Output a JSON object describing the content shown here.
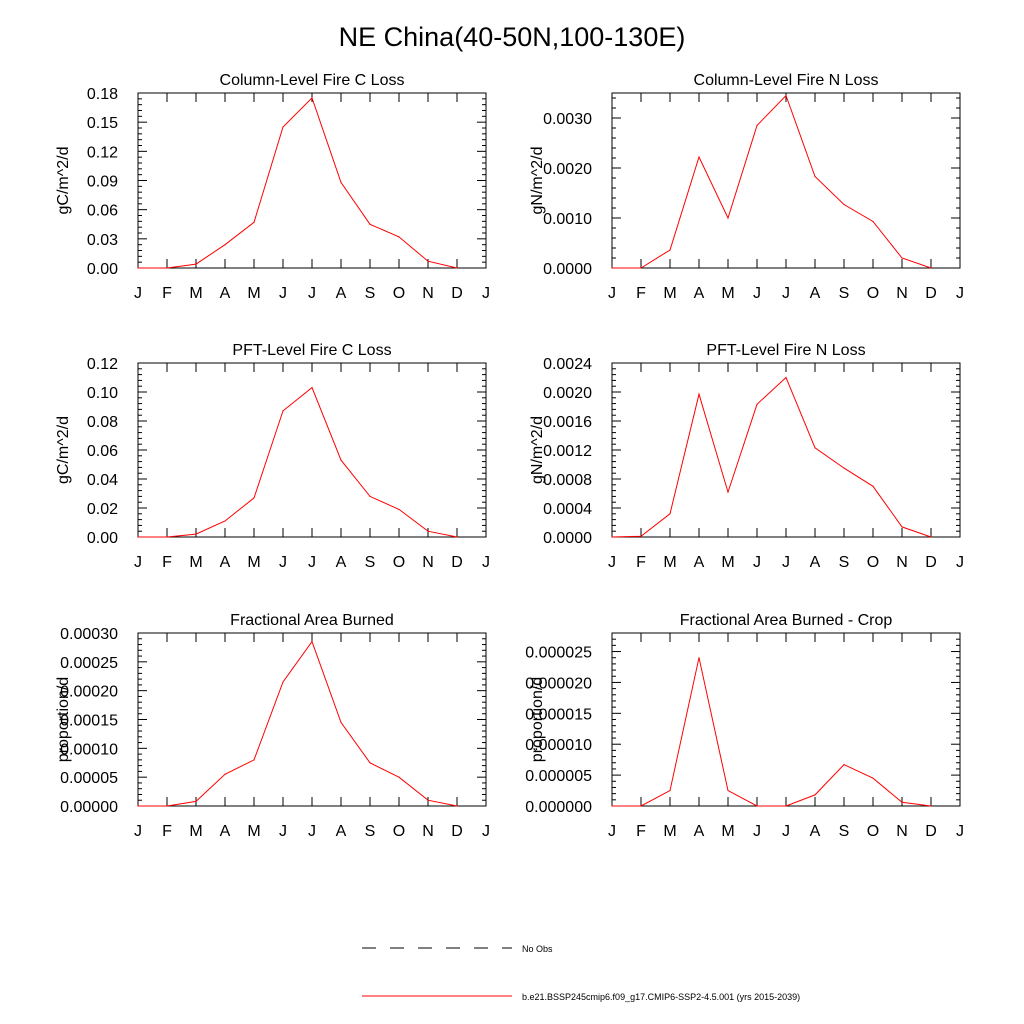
{
  "title": "NE China(40-50N,100-130E)",
  "months": [
    "J",
    "F",
    "M",
    "A",
    "M",
    "J",
    "J",
    "A",
    "S",
    "O",
    "N",
    "D",
    "J"
  ],
  "legend": {
    "obs_label": "No Obs",
    "model_label": "b.e21.BSSP245cmip6.f09_g17.CMIP6-SSP2-4.5.001 (yrs 2015-2039)",
    "obs_color": "#000000",
    "model_color": "#ff0000"
  },
  "chart_data": [
    {
      "type": "line",
      "title": "Column-Level Fire C Loss",
      "ylabel": "gC/m^2/d",
      "ylim": [
        0,
        0.18
      ],
      "yticks": [
        "0.00",
        "0.03",
        "0.06",
        "0.09",
        "0.12",
        "0.15",
        "0.18"
      ],
      "x": [
        "J",
        "F",
        "M",
        "A",
        "M",
        "J",
        "J",
        "A",
        "S",
        "O",
        "N",
        "D"
      ],
      "series": [
        {
          "values": [
            0.0,
            0.0,
            0.004,
            0.024,
            0.047,
            0.145,
            0.175,
            0.088,
            0.045,
            0.032,
            0.007,
            0.0
          ]
        }
      ]
    },
    {
      "type": "line",
      "title": "Column-Level Fire N Loss",
      "ylabel": "gN/m^2/d",
      "ylim": [
        0,
        0.0035
      ],
      "yticks": [
        "0.0000",
        "0.0010",
        "0.0020",
        "0.0030"
      ],
      "x": [
        "J",
        "F",
        "M",
        "A",
        "M",
        "J",
        "J",
        "A",
        "S",
        "O",
        "N",
        "D"
      ],
      "series": [
        {
          "values": [
            0.0,
            0.0,
            0.00036,
            0.00222,
            0.001,
            0.00285,
            0.00345,
            0.00183,
            0.00127,
            0.00093,
            0.0002,
            0.0
          ]
        }
      ]
    },
    {
      "type": "line",
      "title": "PFT-Level Fire C Loss",
      "ylabel": "gC/m^2/d",
      "ylim": [
        0,
        0.12
      ],
      "yticks": [
        "0.00",
        "0.02",
        "0.04",
        "0.06",
        "0.08",
        "0.10",
        "0.12"
      ],
      "x": [
        "J",
        "F",
        "M",
        "A",
        "M",
        "J",
        "J",
        "A",
        "S",
        "O",
        "N",
        "D"
      ],
      "series": [
        {
          "values": [
            0.0,
            0.0,
            0.002,
            0.011,
            0.027,
            0.087,
            0.103,
            0.053,
            0.028,
            0.019,
            0.004,
            0.0
          ]
        }
      ]
    },
    {
      "type": "line",
      "title": "PFT-Level Fire N Loss",
      "ylabel": "gN/m^2/d",
      "ylim": [
        0,
        0.0024
      ],
      "yticks": [
        "0.0000",
        "0.0004",
        "0.0008",
        "0.0012",
        "0.0016",
        "0.0020",
        "0.0024"
      ],
      "x": [
        "J",
        "F",
        "M",
        "A",
        "M",
        "J",
        "J",
        "A",
        "S",
        "O",
        "N",
        "D"
      ],
      "series": [
        {
          "values": [
            0.0,
            1e-05,
            0.00032,
            0.00197,
            0.00062,
            0.00183,
            0.0022,
            0.00123,
            0.00095,
            0.0007,
            0.00014,
            0.0
          ]
        }
      ]
    },
    {
      "type": "line",
      "title": "Fractional Area Burned",
      "ylabel": "proportion/d",
      "ylim": [
        0,
        0.0003
      ],
      "yticks": [
        "0.00000",
        "0.00005",
        "0.00010",
        "0.00015",
        "0.00020",
        "0.00025",
        "0.00030"
      ],
      "x": [
        "J",
        "F",
        "M",
        "A",
        "M",
        "J",
        "J",
        "A",
        "S",
        "O",
        "N",
        "D"
      ],
      "series": [
        {
          "values": [
            0.0,
            0.0,
            8e-06,
            5.5e-05,
            8e-05,
            0.000215,
            0.000285,
            0.000145,
            7.5e-05,
            5e-05,
            1e-05,
            0.0
          ]
        }
      ]
    },
    {
      "type": "line",
      "title": "Fractional Area Burned - Crop",
      "ylabel": "proportion/d",
      "ylim": [
        0,
        2.8e-05
      ],
      "yticks": [
        "0.000000",
        "0.000005",
        "0.000010",
        "0.000015",
        "0.000020",
        "0.000025"
      ],
      "x": [
        "J",
        "F",
        "M",
        "A",
        "M",
        "J",
        "J",
        "A",
        "S",
        "O",
        "N",
        "D"
      ],
      "series": [
        {
          "values": [
            0.0,
            0.0,
            2.5e-06,
            2.4e-05,
            2.5e-06,
            0.0,
            0.0,
            1.8e-06,
            6.7e-06,
            4.5e-06,
            6e-07,
            0.0
          ]
        }
      ]
    }
  ]
}
